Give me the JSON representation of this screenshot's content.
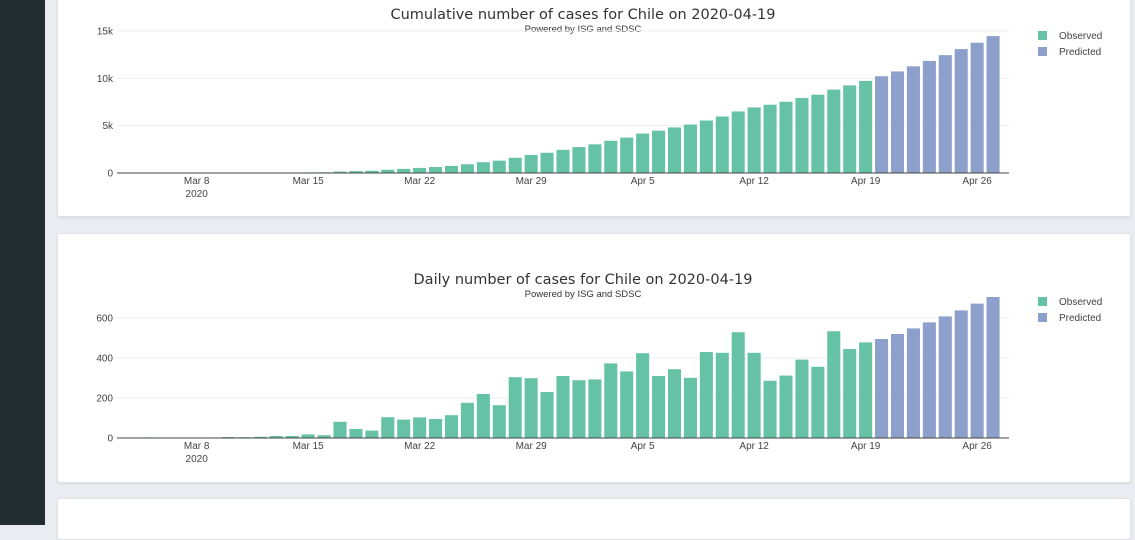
{
  "chart_data": [
    {
      "type": "bar",
      "title": "Cumulative number of cases for Chile on 2020-04-19",
      "subtitle": "Powered by ISG and SDSC",
      "x_tick_labels": [
        {
          "date": "2020-03-08",
          "label": "Mar 8",
          "sublabel": "2020"
        },
        {
          "date": "2020-03-15",
          "label": "Mar 15"
        },
        {
          "date": "2020-03-22",
          "label": "Mar 22"
        },
        {
          "date": "2020-03-29",
          "label": "Mar 29"
        },
        {
          "date": "2020-04-05",
          "label": "Apr 5"
        },
        {
          "date": "2020-04-12",
          "label": "Apr 12"
        },
        {
          "date": "2020-04-19",
          "label": "Apr 19"
        },
        {
          "date": "2020-04-26",
          "label": "Apr 26"
        }
      ],
      "y_ticks": [
        {
          "value": 0,
          "label": "0"
        },
        {
          "value": 5000,
          "label": "5k"
        },
        {
          "value": 10000,
          "label": "10k"
        },
        {
          "value": 15000,
          "label": "15k"
        }
      ],
      "ylim": [
        0,
        15000
      ],
      "xlim": [
        "2020-03-03",
        "2020-04-28"
      ],
      "legend_position": "top-right",
      "grid": true,
      "series": [
        {
          "name": "Observed",
          "color": "#66c2a5",
          "start_date": "2020-03-03",
          "values": [
            1,
            1,
            4,
            5,
            5,
            7,
            8,
            13,
            17,
            23,
            33,
            43,
            61,
            75,
            156,
            201,
            238,
            342,
            434,
            537,
            632,
            746,
            922,
            1142,
            1306,
            1610,
            1909,
            2139,
            2449,
            2738,
            3031,
            3404,
            3737,
            4161,
            4471,
            4815,
            5116,
            5546,
            5972,
            6501,
            6927,
            7213,
            7525,
            7917,
            8273,
            8807,
            9252,
            9730
          ]
        },
        {
          "name": "Predicted",
          "color": "#8da0cb",
          "start_date": "2020-04-20",
          "values": [
            10220,
            10730,
            11270,
            11840,
            12450,
            13090,
            13760,
            14460
          ]
        }
      ]
    },
    {
      "type": "bar",
      "title": "Daily number of cases for Chile on 2020-04-19",
      "subtitle": "Powered by ISG and SDSC",
      "x_tick_labels": [
        {
          "date": "2020-03-08",
          "label": "Mar 8",
          "sublabel": "2020"
        },
        {
          "date": "2020-03-15",
          "label": "Mar 15"
        },
        {
          "date": "2020-03-22",
          "label": "Mar 22"
        },
        {
          "date": "2020-03-29",
          "label": "Mar 29"
        },
        {
          "date": "2020-04-05",
          "label": "Apr 5"
        },
        {
          "date": "2020-04-12",
          "label": "Apr 12"
        },
        {
          "date": "2020-04-19",
          "label": "Apr 19"
        },
        {
          "date": "2020-04-26",
          "label": "Apr 26"
        }
      ],
      "y_ticks": [
        {
          "value": 0,
          "label": "0"
        },
        {
          "value": 200,
          "label": "200"
        },
        {
          "value": 400,
          "label": "400"
        },
        {
          "value": 600,
          "label": "600"
        }
      ],
      "ylim": [
        0,
        700
      ],
      "xlim": [
        "2020-03-03",
        "2020-04-28"
      ],
      "legend_position": "top-right",
      "grid": true,
      "series": [
        {
          "name": "Observed",
          "color": "#66c2a5",
          "start_date": "2020-03-03",
          "values": [
            1,
            0,
            3,
            1,
            0,
            2,
            1,
            5,
            4,
            6,
            10,
            10,
            18,
            14,
            81,
            45,
            37,
            104,
            92,
            103,
            95,
            114,
            176,
            220,
            164,
            304,
            299,
            230,
            310,
            289,
            293,
            373,
            333,
            424,
            310,
            344,
            301,
            430,
            426,
            529,
            426,
            286,
            312,
            392,
            356,
            534,
            445,
            478
          ]
        },
        {
          "name": "Predicted",
          "color": "#8da0cb",
          "start_date": "2020-04-20",
          "values": [
            495,
            520,
            548,
            578,
            608,
            638,
            672,
            705
          ]
        }
      ]
    }
  ]
}
